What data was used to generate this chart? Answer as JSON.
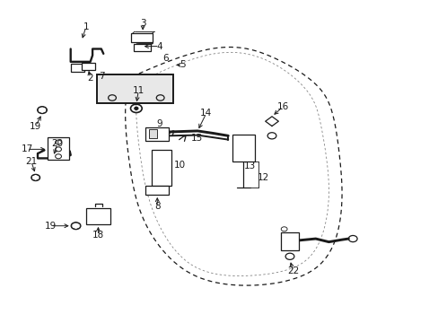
{
  "bg_color": "#ffffff",
  "line_color": "#1a1a1a",
  "figsize": [
    4.89,
    3.6
  ],
  "dpi": 100,
  "label_fs": 7.5,
  "lw": 0.9,
  "door_outer": {
    "x": [
      0.295,
      0.285,
      0.295,
      0.33,
      0.43,
      0.57,
      0.68,
      0.74,
      0.77,
      0.78,
      0.775,
      0.76,
      0.72,
      0.62,
      0.48,
      0.295
    ],
    "y": [
      0.76,
      0.64,
      0.49,
      0.31,
      0.155,
      0.115,
      0.14,
      0.195,
      0.28,
      0.39,
      0.51,
      0.64,
      0.74,
      0.825,
      0.85,
      0.76
    ]
  },
  "door_inner": {
    "x": [
      0.315,
      0.31,
      0.32,
      0.35,
      0.435,
      0.565,
      0.665,
      0.715,
      0.74,
      0.75,
      0.745,
      0.73,
      0.7,
      0.615,
      0.48,
      0.315
    ],
    "y": [
      0.745,
      0.645,
      0.51,
      0.34,
      0.18,
      0.145,
      0.168,
      0.218,
      0.295,
      0.395,
      0.505,
      0.625,
      0.72,
      0.81,
      0.833,
      0.745
    ]
  }
}
